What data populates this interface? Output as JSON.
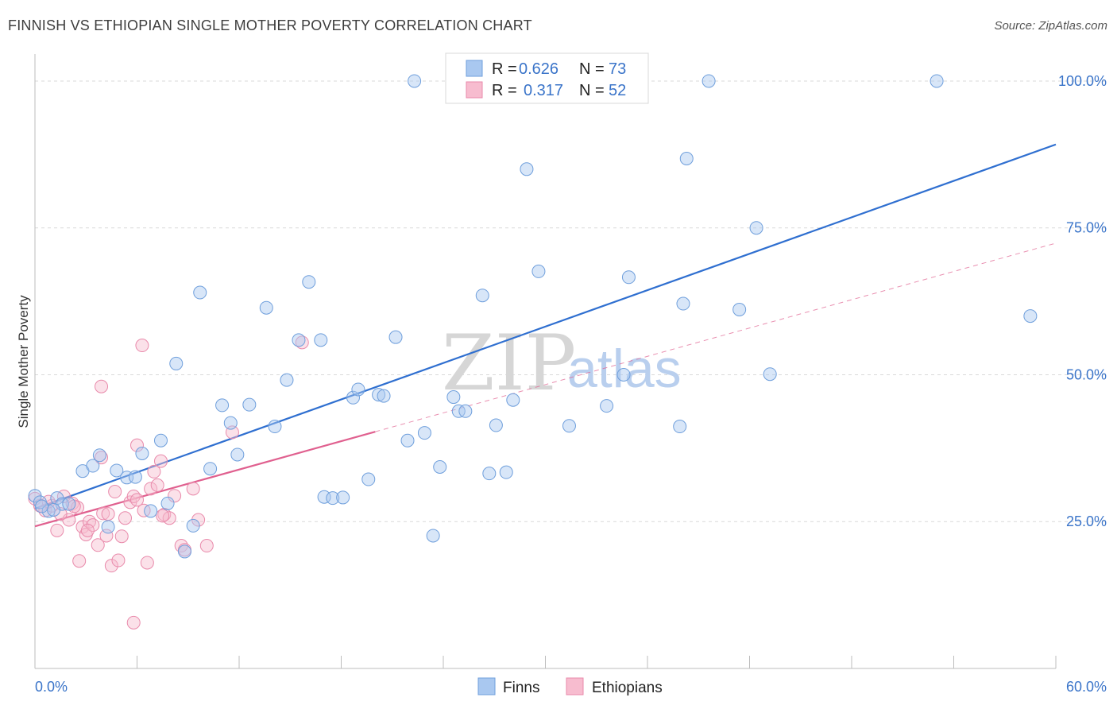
{
  "title": "FINNISH VS ETHIOPIAN SINGLE MOTHER POVERTY CORRELATION CHART",
  "source": "Source: ZipAtlas.com",
  "watermark": {
    "part1": "ZIP",
    "part2": "atlas"
  },
  "colors": {
    "finns_fill": "#a9c8f0",
    "finns_stroke": "#6f9fdc",
    "finns_line": "#2f6fd0",
    "ethiopians_fill": "#f7bccf",
    "ethiopians_stroke": "#e98aab",
    "ethiopians_line": "#e0608f",
    "tick_label": "#3a74c9",
    "grid": "#d9d9d9"
  },
  "legend": {
    "rows": [
      {
        "r_label": "R =",
        "r_value": "0.626",
        "n_label": "N =",
        "n_value": "73"
      },
      {
        "r_label": "R =",
        "r_value": "0.317",
        "n_label": "N =",
        "n_value": "52"
      }
    ]
  },
  "bottom_legend": {
    "finns": "Finns",
    "ethiopians": "Ethiopians"
  },
  "chart_data": {
    "type": "scatter",
    "title": "FINNISH VS ETHIOPIAN SINGLE MOTHER POVERTY CORRELATION CHART",
    "xlabel": "",
    "ylabel": "Single Mother Poverty",
    "xlim": [
      0,
      60
    ],
    "ylim": [
      0,
      105
    ],
    "x_tick_labels": [
      "0.0%",
      "60.0%"
    ],
    "y_ticks": [
      25,
      50,
      75,
      100
    ],
    "y_tick_labels": [
      "25.0%",
      "50.0%",
      "75.0%",
      "100.0%"
    ],
    "grid": "horizontal dashed",
    "legend_position": "top-center",
    "series": [
      {
        "name": "Finns",
        "r": 0.626,
        "n": 73,
        "trend": {
          "x": [
            0,
            60
          ],
          "y": [
            27.2,
            89.2
          ]
        },
        "points": [
          [
            0.0,
            29.4
          ],
          [
            0.3,
            28.3
          ],
          [
            0.8,
            26.8
          ],
          [
            1.3,
            29.0
          ],
          [
            1.6,
            28.0
          ],
          [
            2.8,
            33.6
          ],
          [
            3.4,
            34.5
          ],
          [
            3.8,
            36.3
          ],
          [
            4.3,
            24.1
          ],
          [
            4.8,
            33.7
          ],
          [
            5.4,
            32.5
          ],
          [
            5.9,
            32.6
          ],
          [
            6.3,
            36.6
          ],
          [
            6.8,
            26.8
          ],
          [
            7.4,
            38.8
          ],
          [
            7.8,
            28.1
          ],
          [
            8.3,
            51.9
          ],
          [
            8.8,
            19.9
          ],
          [
            9.3,
            24.3
          ],
          [
            9.7,
            64.0
          ],
          [
            10.3,
            34.0
          ],
          [
            11.0,
            44.8
          ],
          [
            11.5,
            41.8
          ],
          [
            11.9,
            36.4
          ],
          [
            12.6,
            44.9
          ],
          [
            13.6,
            61.4
          ],
          [
            14.1,
            41.2
          ],
          [
            14.8,
            49.1
          ],
          [
            15.5,
            55.9
          ],
          [
            16.1,
            65.8
          ],
          [
            16.8,
            55.9
          ],
          [
            17.0,
            29.2
          ],
          [
            17.5,
            29.0
          ],
          [
            18.1,
            29.1
          ],
          [
            18.7,
            46.1
          ],
          [
            19.0,
            47.5
          ],
          [
            19.6,
            32.2
          ],
          [
            20.2,
            46.6
          ],
          [
            20.5,
            46.4
          ],
          [
            21.2,
            56.4
          ],
          [
            21.9,
            38.8
          ],
          [
            22.3,
            100.0
          ],
          [
            22.9,
            40.1
          ],
          [
            23.4,
            22.6
          ],
          [
            23.8,
            34.3
          ],
          [
            24.6,
            46.2
          ],
          [
            24.9,
            43.8
          ],
          [
            25.3,
            43.8
          ],
          [
            26.3,
            63.5
          ],
          [
            26.7,
            33.2
          ],
          [
            27.1,
            41.4
          ],
          [
            27.7,
            33.4
          ],
          [
            28.1,
            45.7
          ],
          [
            28.9,
            85.0
          ],
          [
            29.6,
            67.6
          ],
          [
            30.4,
            100.0
          ],
          [
            31.4,
            41.3
          ],
          [
            33.6,
            44.7
          ],
          [
            34.6,
            50.0
          ],
          [
            34.9,
            66.6
          ],
          [
            35.6,
            100.0
          ],
          [
            38.1,
            62.1
          ],
          [
            38.3,
            86.8
          ],
          [
            37.9,
            41.2
          ],
          [
            39.6,
            100.0
          ],
          [
            41.4,
            61.1
          ],
          [
            42.4,
            75.0
          ],
          [
            43.2,
            50.1
          ],
          [
            53.0,
            100.0
          ],
          [
            58.5,
            60.0
          ],
          [
            1.1,
            27.0
          ],
          [
            0.4,
            27.6
          ],
          [
            2.0,
            28.0
          ]
        ]
      },
      {
        "name": "Ethiopians",
        "r": 0.317,
        "n": 52,
        "trend": {
          "x": [
            0,
            20
          ],
          "y": [
            24.2,
            40.3
          ]
        },
        "trend_extension": {
          "x": [
            20,
            60
          ],
          "y": [
            40.3,
            72.4
          ]
        },
        "points": [
          [
            0.0,
            28.9
          ],
          [
            0.3,
            27.7
          ],
          [
            0.6,
            26.9
          ],
          [
            1.0,
            27.7
          ],
          [
            1.3,
            23.5
          ],
          [
            1.7,
            29.3
          ],
          [
            2.0,
            25.3
          ],
          [
            2.2,
            28.1
          ],
          [
            2.5,
            27.4
          ],
          [
            2.6,
            18.3
          ],
          [
            2.8,
            24.1
          ],
          [
            3.0,
            22.8
          ],
          [
            3.2,
            25.0
          ],
          [
            3.4,
            24.4
          ],
          [
            3.7,
            21.0
          ],
          [
            3.9,
            35.9
          ],
          [
            4.0,
            26.4
          ],
          [
            4.2,
            22.6
          ],
          [
            4.5,
            17.5
          ],
          [
            4.7,
            30.1
          ],
          [
            4.9,
            18.4
          ],
          [
            5.1,
            22.5
          ],
          [
            5.3,
            25.6
          ],
          [
            5.6,
            28.3
          ],
          [
            5.8,
            29.3
          ],
          [
            6.0,
            38.0
          ],
          [
            6.3,
            55.0
          ],
          [
            6.4,
            26.9
          ],
          [
            6.6,
            18.0
          ],
          [
            6.8,
            30.6
          ],
          [
            7.0,
            33.5
          ],
          [
            7.2,
            31.2
          ],
          [
            7.4,
            35.3
          ],
          [
            7.6,
            26.2
          ],
          [
            7.9,
            25.6
          ],
          [
            8.2,
            29.4
          ],
          [
            8.6,
            20.9
          ],
          [
            9.3,
            30.6
          ],
          [
            9.6,
            25.3
          ],
          [
            10.1,
            20.9
          ],
          [
            11.6,
            40.2
          ],
          [
            15.7,
            55.5
          ],
          [
            3.9,
            48.0
          ],
          [
            5.8,
            7.8
          ],
          [
            2.3,
            27.6
          ],
          [
            1.5,
            26.3
          ],
          [
            0.8,
            28.4
          ],
          [
            3.1,
            23.5
          ],
          [
            4.3,
            26.3
          ],
          [
            6.0,
            28.7
          ],
          [
            7.5,
            26.0
          ],
          [
            8.8,
            20.2
          ]
        ]
      }
    ]
  }
}
